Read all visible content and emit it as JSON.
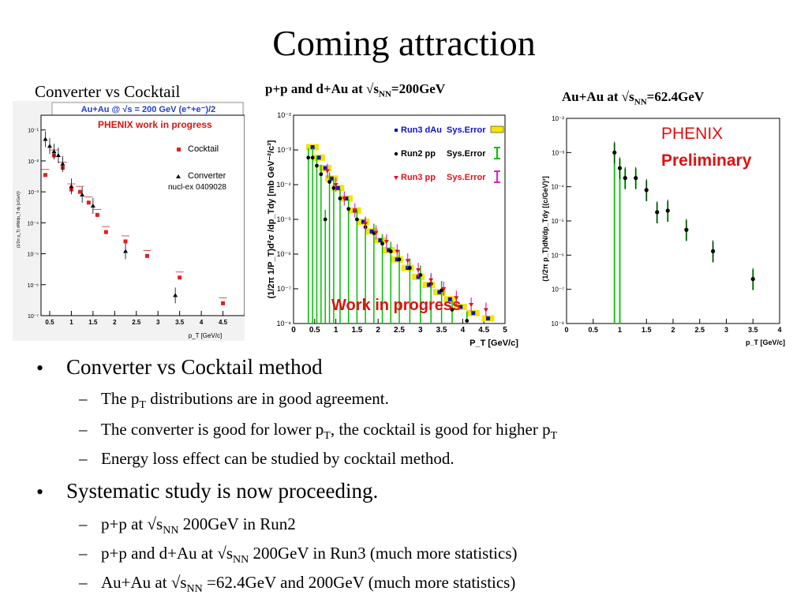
{
  "slide": {
    "title": "Coming attraction"
  },
  "panels": {
    "left_caption": "Converter vs Cocktail",
    "middle_caption_a": "p+p and d+Au at √s",
    "middle_caption_sub": "NN",
    "middle_caption_b": "=200GeV",
    "right_caption_a": "Au+Au at √s",
    "right_caption_sub": "NN",
    "right_caption_b": "=62.4GeV"
  },
  "chart_data": [
    {
      "type": "scatter",
      "header": "Au+Au @ √s = 200 GeV (e⁺+e⁻)/2",
      "note": "PHENIX work in progress",
      "ref": "nucl-ex 0409028",
      "xlabel": "p_T [GeV/c]",
      "ylabel": "(1/2π p_T) d²N/dp_T dy [c/GeV]²",
      "log_y": true,
      "xlim": [
        0.3,
        5.0
      ],
      "ylim": [
        1e-07,
        0.3
      ],
      "xticks": [
        "0.5",
        "1",
        "1.5",
        "2",
        "2.5",
        "3",
        "3.5",
        "4",
        "4.5"
      ],
      "yticks": [
        "10⁻⁷",
        "10⁻⁶",
        "10⁻⁵",
        "10⁻⁴",
        "10⁻³",
        "10⁻²",
        "10⁻¹"
      ],
      "legend_placement": "top-right",
      "series": [
        {
          "name": "Cocktail",
          "color": "#e02020",
          "x": [
            0.4,
            0.6,
            0.8,
            1.0,
            1.2,
            1.4,
            1.6,
            1.8,
            2.25,
            2.75,
            3.5,
            4.5
          ],
          "y": [
            0.0035,
            0.015,
            0.006,
            0.0012,
            0.001,
            0.00045,
            0.00018,
            5e-05,
            2.5e-05,
            8.5e-06,
            1.7e-06,
            2.5e-07
          ]
        },
        {
          "name": "Converter",
          "color": "#000000",
          "x": [
            0.4,
            0.5,
            0.6,
            0.7,
            0.8,
            1.0,
            1.25,
            1.5,
            2.25,
            3.4
          ],
          "y": [
            0.05,
            0.03,
            0.02,
            0.015,
            0.008,
            0.0015,
            0.0008,
            0.00035,
            1.2e-05,
            4.5e-07
          ]
        }
      ]
    },
    {
      "type": "scatter",
      "xlabel": "P_T [GeV/c]",
      "ylabel": "(1/2π 1/P_T)d²σ /dp_Tdy [mb GeV⁻²/c³]",
      "log_y": true,
      "xlim": [
        0,
        5
      ],
      "ylim": [
        1e-08,
        0.01
      ],
      "xticks": [
        "0",
        "0.5",
        "1",
        "1.5",
        "2",
        "2.5",
        "3",
        "3.5",
        "4",
        "4.5",
        "5"
      ],
      "yticks": [
        "10⁻⁸",
        "10⁻⁷",
        "10⁻⁶",
        "10⁻⁵",
        "10⁻⁴",
        "10⁻³",
        "10⁻²"
      ],
      "annotation": "Work in progress",
      "legend_placement": "top-right",
      "legend": [
        {
          "name": "Run3 dAu",
          "err": "Sys.Error",
          "color": "#1010d0",
          "err_color": "#f5e400"
        },
        {
          "name": "Run2 pp",
          "err": "Sys.Error",
          "color": "#000000",
          "err_color": "#00c000"
        },
        {
          "name": "Run3 pp",
          "err": "Sys.Error",
          "color": "#e01020",
          "err_color": "#e020d0"
        }
      ],
      "series": [
        {
          "name": "Run3 dAu",
          "color": "#1010d0",
          "x": [
            0.45,
            0.6,
            0.75,
            0.9,
            1.05,
            1.25,
            1.45,
            1.65,
            1.85,
            2.05,
            2.25,
            2.45,
            2.7,
            2.95,
            3.2,
            3.45,
            3.7,
            3.95,
            4.25,
            4.6
          ],
          "y": [
            0.0012,
            0.0006,
            0.0003,
            0.00015,
            8e-05,
            4e-05,
            1.8e-05,
            8.5e-06,
            4.5e-06,
            2.5e-06,
            1.3e-06,
            7e-07,
            4e-07,
            2.2e-07,
            1.3e-07,
            8e-08,
            5e-08,
            3e-08,
            2e-08,
            1.4e-08
          ]
        },
        {
          "name": "Run2 pp",
          "color": "#000000",
          "x": [
            0.35,
            0.45,
            0.55,
            0.65,
            0.75,
            0.85,
            0.95,
            1.1,
            1.3,
            1.5,
            1.7,
            1.9,
            2.1,
            2.3,
            2.5,
            2.75,
            3.0,
            3.25,
            3.5,
            3.75,
            4.1
          ],
          "y": [
            0.0006,
            0.0006,
            0.00035,
            0.0002,
            1e-05,
            0.00012,
            8e-05,
            4e-05,
            2e-05,
            1e-05,
            6e-06,
            4e-06,
            2e-06,
            1.2e-06,
            7e-07,
            4e-07,
            2.5e-07,
            1.4e-07,
            9e-08,
            2.5e-08,
            1.2e-08
          ]
        },
        {
          "name": "Run3 pp",
          "color": "#e01020",
          "x": [
            0.8,
            1.0,
            1.2,
            1.45,
            1.7,
            1.95,
            2.2,
            2.45,
            2.7,
            2.95,
            3.25,
            3.55,
            3.85,
            4.2,
            4.55
          ],
          "y": [
            0.00025,
            0.0001,
            4e-05,
            1.8e-05,
            7.5e-06,
            4.2e-06,
            2.3e-06,
            1.2e-06,
            6.5e-07,
            3.5e-07,
            1.8e-07,
            1e-07,
            5.5e-08,
            3.5e-08,
            2.5e-08
          ]
        }
      ]
    },
    {
      "type": "scatter",
      "annotation_a": "PHENIX",
      "annotation_b": "Preliminary",
      "xlabel": "p_T [GeV/c]",
      "ylabel": "(1/2π p_T)dN/dp_Tdy [(c/GeV)²]",
      "log_y": true,
      "xlim": [
        0,
        4
      ],
      "ylim": [
        1e-08,
        0.01
      ],
      "xticks": [
        "0",
        "0.5",
        "1",
        "1.5",
        "2",
        "2.5",
        "3",
        "3.5",
        "4"
      ],
      "yticks": [
        "10⁻⁸",
        "10⁻⁷",
        "10⁻⁶",
        "10⁻⁵",
        "10⁻⁴",
        "10⁻³",
        "10⁻²"
      ],
      "series": [
        {
          "name": "",
          "color": "#000000",
          "x": [
            0.9,
            1.0,
            1.1,
            1.3,
            1.5,
            1.7,
            1.9,
            2.25,
            2.75,
            3.5
          ],
          "y": [
            0.001,
            0.00035,
            0.00018,
            0.00018,
            8e-05,
            1.8e-05,
            2e-05,
            5.5e-06,
            1.3e-06,
            2e-07
          ]
        }
      ]
    }
  ],
  "bullets": [
    {
      "text": "Converter vs Cocktail method",
      "sub": [
        {
          "a": "The p",
          "s": "T",
          "b": " distributions are in good agreement."
        },
        {
          "a": "The converter is good for lower p",
          "s": "T",
          "b": ", the cocktail is good for higher p",
          "s2": "T"
        },
        {
          "a": "Energy loss effect can be studied by cocktail method.",
          "s": "",
          "b": ""
        }
      ]
    },
    {
      "text": "Systematic study is now proceeding.",
      "sub": [
        {
          "a": "p+p at √s",
          "s": "NN",
          "b": " 200GeV in Run2"
        },
        {
          "a": "p+p and d+Au at √s",
          "s": "NN",
          "b": " 200GeV in Run3 (much more statistics)"
        },
        {
          "a": "Au+Au at √s",
          "s": "NN",
          "b": " =62.4GeV and 200GeV (much more statistics)"
        }
      ]
    }
  ]
}
